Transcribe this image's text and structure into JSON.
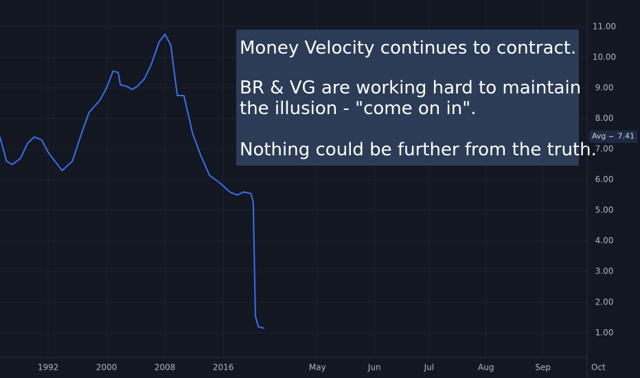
{
  "chart_data": {
    "type": "line",
    "annotation": [
      "Money Velocity continues to contract.",
      "BR & VG are working hard to maintain",
      "the illusion - \"come on in\".",
      "Nothing could be further from the truth."
    ],
    "avg_label": "Avg",
    "avg_value": 7.41,
    "x": [
      1985.4,
      1986.3,
      1987.1,
      1988.2,
      1989.2,
      1990.1,
      1991.1,
      1992.0,
      1993.9,
      1995.3,
      1996.7,
      1997.6,
      1999.1,
      2000.0,
      2000.9,
      2001.6,
      2001.9,
      2002.8,
      2003.5,
      2004.2,
      2005.2,
      2006.1,
      2007.2,
      2008.0,
      2008.8,
      2009.7,
      2010.6,
      2011.8,
      2012.9,
      2014.1,
      2015.5,
      2016.9,
      2017.9,
      2018.8,
      2019.8,
      2020.1,
      2020.4,
      2020.8,
      2021.6
    ],
    "series": [
      {
        "color": "#3b6ef0",
        "values": [
          7.4,
          6.6,
          6.5,
          6.7,
          7.2,
          7.4,
          7.3,
          6.9,
          6.3,
          6.6,
          7.6,
          8.2,
          8.6,
          9.0,
          9.55,
          9.5,
          9.1,
          9.05,
          8.95,
          9.05,
          9.3,
          9.75,
          10.5,
          10.75,
          10.4,
          8.75,
          8.75,
          7.5,
          6.8,
          6.15,
          5.9,
          5.6,
          5.5,
          5.6,
          5.55,
          5.25,
          1.55,
          1.2,
          1.15
        ]
      }
    ],
    "xlim": [
      1985.4,
      2073.1
    ],
    "xticks": [
      {
        "value": 1992,
        "label": "1992"
      },
      {
        "value": 2000,
        "label": "2000"
      },
      {
        "value": 2008,
        "label": "2008"
      },
      {
        "value": 2016,
        "label": "2016"
      },
      {
        "value": 2028.9,
        "label": "May"
      },
      {
        "value": 2036.7,
        "label": "Jun"
      },
      {
        "value": 2044.2,
        "label": "Jul"
      },
      {
        "value": 2052.0,
        "label": "Aug"
      },
      {
        "value": 2059.8,
        "label": "Sep"
      },
      {
        "value": 2067.4,
        "label": "Oct"
      }
    ],
    "ylim": [
      0.2,
      11.87
    ],
    "yticks": [
      {
        "value": 1,
        "label": "1.00"
      },
      {
        "value": 2,
        "label": "2.00"
      },
      {
        "value": 3,
        "label": "3.00"
      },
      {
        "value": 4,
        "label": "4.00"
      },
      {
        "value": 5,
        "label": "5.00"
      },
      {
        "value": 6,
        "label": "6.00"
      },
      {
        "value": 7,
        "label": "7.00"
      },
      {
        "value": 8,
        "label": "8.00"
      },
      {
        "value": 9,
        "label": "9.00"
      },
      {
        "value": 10,
        "label": "10.00"
      },
      {
        "value": 11,
        "label": "11.00"
      }
    ],
    "grid": true
  }
}
